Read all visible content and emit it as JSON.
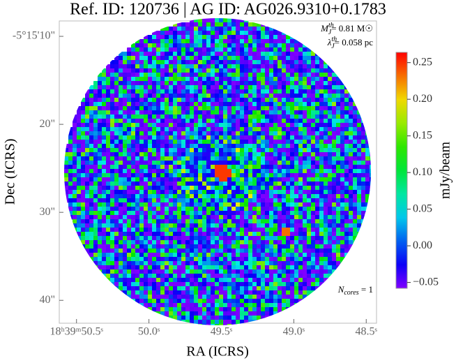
{
  "chart_data": {
    "type": "image",
    "title": "Ref. ID: 120736 | AG ID: AG026.9310+0.1783",
    "xlabel": "RA (ICRS)",
    "ylabel": "Dec (ICRS)",
    "xlim": [
      50.619,
      48.429
    ],
    "xticks": [
      {
        "value": 50.5,
        "label": "18ʰ39ᵐ50.5ˢ"
      },
      {
        "value": 50.0,
        "label": "50.0ˢ"
      },
      {
        "value": 49.5,
        "label": "49.5ˢ"
      },
      {
        "value": 49.0,
        "label": "49.0ˢ"
      },
      {
        "value": 48.5,
        "label": "48.5ˢ"
      }
    ],
    "ylim": [
      8.25,
      42.6
    ],
    "yticks": [
      {
        "value": 10,
        "label": "-5°15'10\""
      },
      {
        "value": 20,
        "label": "20\""
      },
      {
        "value": 30,
        "label": "30\""
      },
      {
        "value": 40,
        "label": "40\""
      }
    ],
    "colormap": "rainbow",
    "colorbar": {
      "label": "mJy/beam",
      "lim": [
        -0.058,
        0.264
      ],
      "ticks": [
        {
          "value": -0.05,
          "label": "−0.05"
        },
        {
          "value": 0,
          "label": "0.00"
        },
        0.05,
        {
          "value": 0.1,
          "label": "0.10"
        },
        0.15,
        {
          "value": 0.2,
          "label": "0.20"
        },
        0.25
      ]
    },
    "annotations": [
      {
        "symbol": "M",
        "sub": "J",
        "sup": "th",
        "text": "= 0.81 M☉"
      },
      {
        "symbol": "λ",
        "sub": "J",
        "sup": "th",
        "text": "= 0.058 pc"
      },
      {
        "symbol": "N",
        "sub": "cores",
        "text": " = 1"
      }
    ]
  }
}
